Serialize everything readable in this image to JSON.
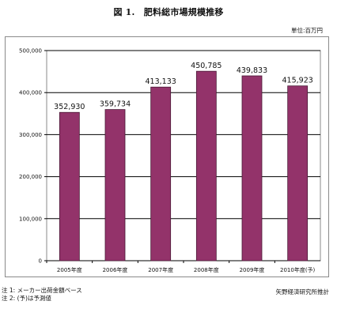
{
  "header": {
    "title": "図 1.　肥料総市場規模推移",
    "unit": "単位:百万円"
  },
  "footer": {
    "notes": [
      "注 1: メーカー出荷金額ベース",
      "注 2: (予)は予測値"
    ],
    "source": "矢野経済研究所推計"
  },
  "chart_data": {
    "type": "bar",
    "categories": [
      "2005年度",
      "2006年度",
      "2007年度",
      "2008年度",
      "2009年度",
      "2010年度(予)"
    ],
    "values": [
      352930,
      359734,
      413133,
      450785,
      439833,
      415923
    ],
    "value_labels": [
      "352,930",
      "359,734",
      "413,133",
      "450,785",
      "439,833",
      "415,923"
    ],
    "y_ticks": [
      0,
      100000,
      200000,
      300000,
      400000,
      500000
    ],
    "y_tick_labels": [
      "0",
      "100,000",
      "200,000",
      "300,000",
      "400,000",
      "500,000"
    ],
    "ylim": [
      0,
      500000
    ],
    "grid": true,
    "bar_color": "#93336a",
    "bar_outline": "#4a1a36",
    "grid_color": "#000000",
    "plot_border_color": "#8a8a8a"
  }
}
